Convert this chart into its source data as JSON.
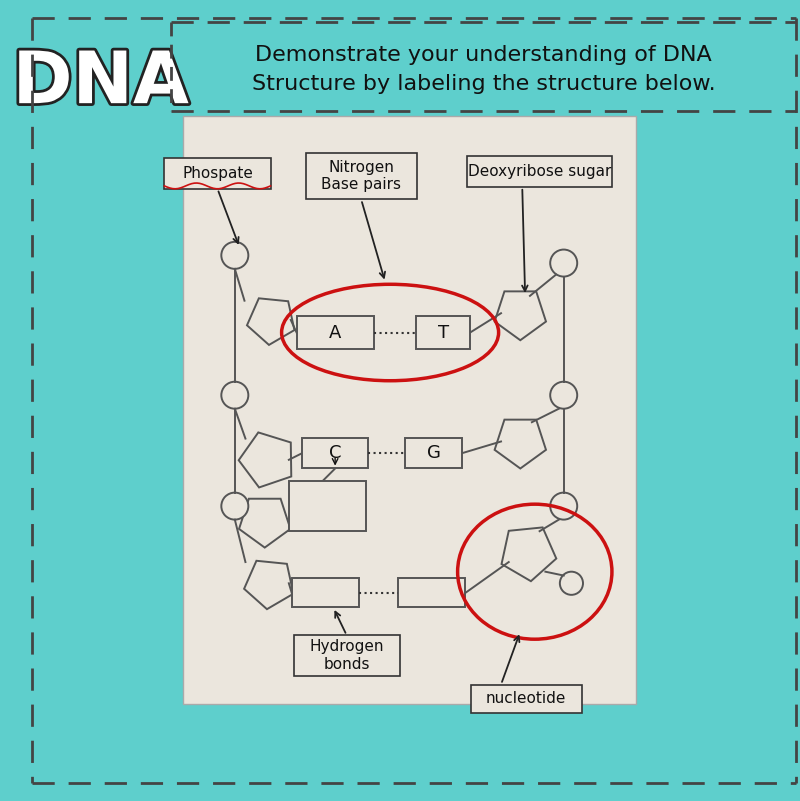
{
  "bg_color": "#5ecfcc",
  "diagram_bg": "#ebe6dd",
  "title_line1": "Demonstrate your understanding of DNA",
  "title_line2": "Structure by labeling the structure below.",
  "dna_label": "DNA",
  "labels": {
    "phosphate": "Phospate",
    "nitrogen": "Nitrogen\nBase pairs",
    "deoxyribose": "Deoxyribose sugar",
    "hydrogen": "Hydrogen\nbonds",
    "nucleotide": "nucleotide"
  }
}
